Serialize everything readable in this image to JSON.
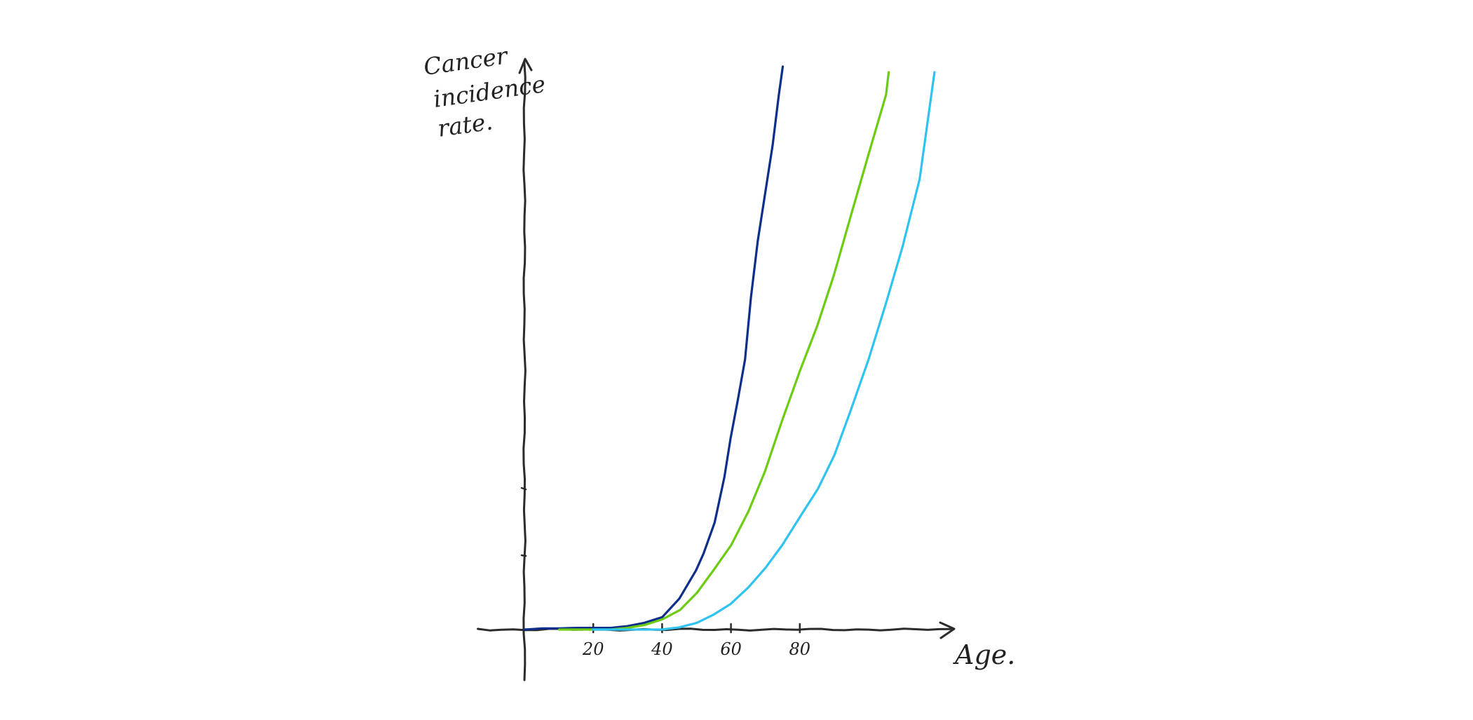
{
  "chart_data": {
    "type": "line",
    "title": "",
    "xlabel": "Age.",
    "ylabel_lines": [
      "Cancer",
      "incidence",
      "rate."
    ],
    "x_ticks": [
      20,
      40,
      60,
      80
    ],
    "x_tick_labels": [
      "20",
      "40",
      "60",
      "80"
    ],
    "xlim": [
      -16,
      125
    ],
    "ylim": [
      0,
      100
    ],
    "grid": false,
    "legend": "none",
    "series": [
      {
        "color": "#0d2e8a",
        "x": [
          0,
          5,
          10,
          15,
          20,
          25,
          30,
          35,
          40,
          45,
          50,
          52,
          55,
          58,
          60,
          62,
          64,
          66,
          68,
          70,
          72,
          74,
          75
        ],
        "y": [
          0,
          0.2,
          0.2,
          0.3,
          0.3,
          0.3,
          0.6,
          1.2,
          2.2,
          5.5,
          10.5,
          13.5,
          19,
          27,
          34,
          41,
          48,
          59,
          69,
          78,
          86,
          95,
          100
        ]
      },
      {
        "color": "#6ccc12",
        "x": [
          10,
          15,
          20,
          25,
          30,
          35,
          40,
          45,
          50,
          55,
          60,
          65,
          70,
          75,
          80,
          85,
          90,
          95,
          100,
          105,
          106
        ],
        "y": [
          0,
          0,
          0,
          0,
          0.3,
          0.8,
          1.8,
          3.5,
          6.5,
          10.5,
          15,
          21,
          28,
          37,
          46,
          54,
          63,
          74,
          85,
          95,
          99
        ]
      },
      {
        "color": "#2fc3f0",
        "x": [
          20,
          25,
          30,
          35,
          40,
          45,
          50,
          55,
          60,
          65,
          70,
          75,
          80,
          85,
          90,
          95,
          100,
          105,
          110,
          115,
          119
        ],
        "y": [
          0,
          0,
          0,
          0,
          0,
          0.4,
          1.2,
          2.6,
          4.5,
          7.5,
          11,
          15,
          20,
          25,
          31,
          39,
          48,
          58,
          68,
          80,
          99
        ]
      }
    ]
  }
}
